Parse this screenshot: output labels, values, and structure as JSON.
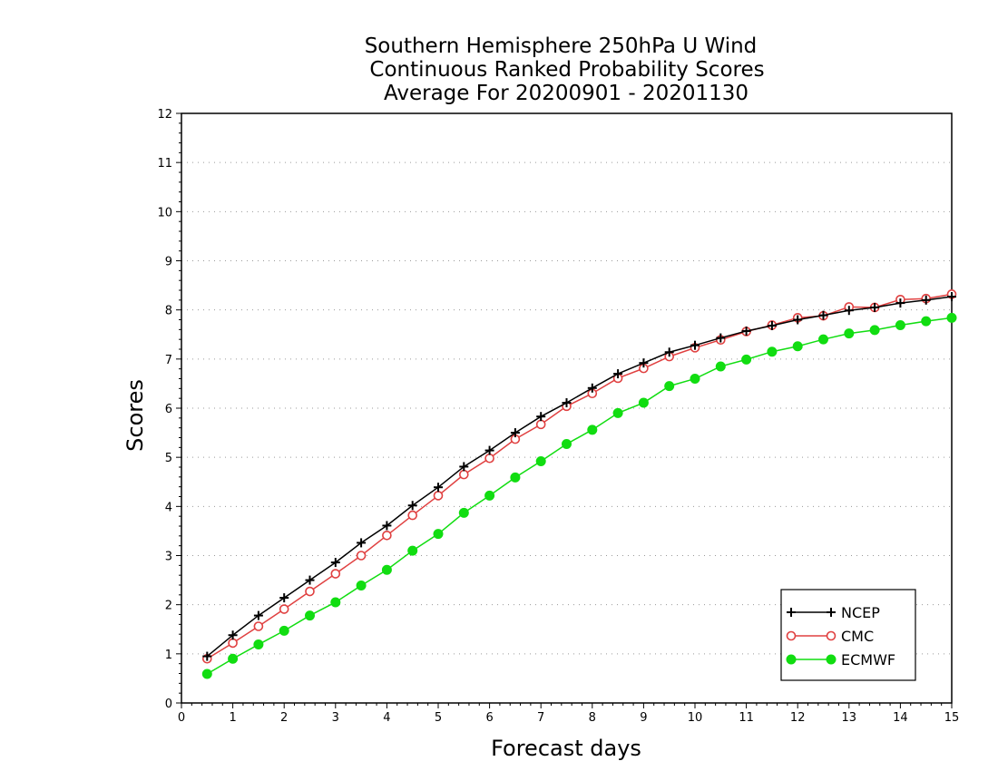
{
  "chart_data": {
    "type": "line",
    "title": [
      "Southern Hemisphere 250hPa U Wind",
      "Continuous Ranked Probability Scores",
      "Average For 20200901 - 20201130"
    ],
    "xlabel": "Forecast days",
    "ylabel": "Scores",
    "xlim": [
      0,
      15
    ],
    "ylim": [
      0,
      12
    ],
    "xticks": [
      0,
      1,
      2,
      3,
      4,
      5,
      6,
      7,
      8,
      9,
      10,
      11,
      12,
      13,
      14,
      15
    ],
    "yticks": [
      0,
      1,
      2,
      3,
      4,
      5,
      6,
      7,
      8,
      9,
      10,
      11,
      12
    ],
    "grid": true,
    "legend_position": "bottom-right",
    "x": [
      0.5,
      1,
      1.5,
      2,
      2.5,
      3,
      3.5,
      4,
      4.5,
      5,
      5.5,
      6,
      6.5,
      7,
      7.5,
      8,
      8.5,
      9,
      9.5,
      10,
      10.5,
      11,
      11.5,
      12,
      12.5,
      13,
      13.5,
      14,
      14.5,
      15
    ],
    "series": [
      {
        "name": "NCEP",
        "color": "#000000",
        "marker": "plus",
        "values": [
          0.95,
          1.38,
          1.78,
          2.14,
          2.5,
          2.86,
          3.26,
          3.61,
          4.02,
          4.39,
          4.81,
          5.14,
          5.5,
          5.83,
          6.11,
          6.41,
          6.7,
          6.92,
          7.14,
          7.28,
          7.43,
          7.57,
          7.68,
          7.8,
          7.89,
          7.99,
          8.05,
          8.14,
          8.2,
          8.27
        ]
      },
      {
        "name": "CMC",
        "color": "#e04040",
        "marker": "open-circle",
        "values": [
          0.9,
          1.22,
          1.56,
          1.91,
          2.27,
          2.63,
          3.0,
          3.41,
          3.82,
          4.22,
          4.65,
          4.98,
          5.37,
          5.67,
          6.04,
          6.3,
          6.61,
          6.81,
          7.05,
          7.23,
          7.39,
          7.56,
          7.69,
          7.84,
          7.88,
          8.06,
          8.05,
          8.21,
          8.23,
          8.32
        ]
      },
      {
        "name": "ECMWF",
        "color": "#11dd11",
        "marker": "filled-circle",
        "values": [
          0.59,
          0.9,
          1.19,
          1.47,
          1.78,
          2.05,
          2.39,
          2.71,
          3.1,
          3.44,
          3.87,
          4.22,
          4.59,
          4.92,
          5.27,
          5.56,
          5.9,
          6.11,
          6.45,
          6.6,
          6.85,
          6.99,
          7.15,
          7.26,
          7.4,
          7.52,
          7.59,
          7.69,
          7.77,
          7.84
        ]
      }
    ]
  }
}
